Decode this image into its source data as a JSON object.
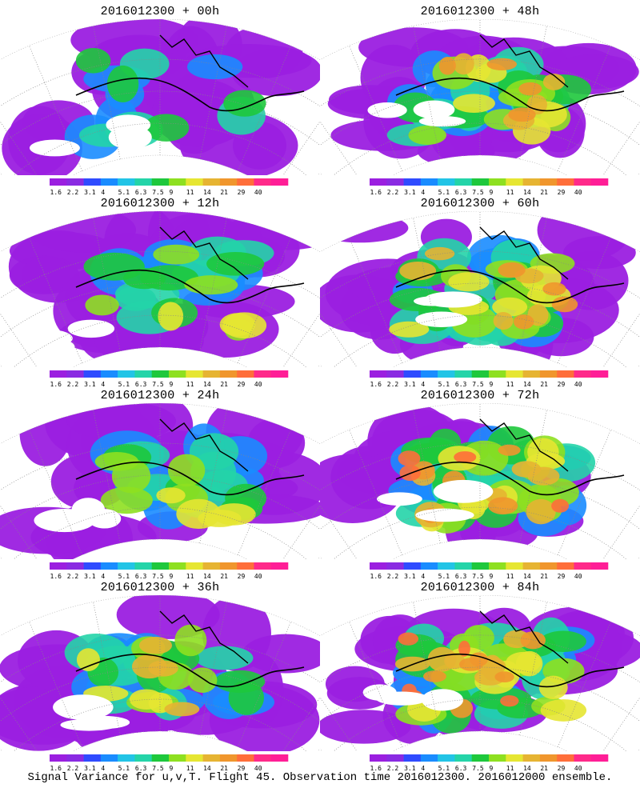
{
  "caption": "Signal Variance for u,v,T. Flight 45. Observation time 2016012300. 2016012000 ensemble.",
  "panels": [
    {
      "title": "2016012300 + 00h",
      "intensity": 0.15
    },
    {
      "title": "2016012300 + 48h",
      "intensity": 0.55
    },
    {
      "title": "2016012300 + 12h",
      "intensity": 0.3
    },
    {
      "title": "2016012300 + 60h",
      "intensity": 0.65
    },
    {
      "title": "2016012300 + 24h",
      "intensity": 0.38
    },
    {
      "title": "2016012300 + 72h",
      "intensity": 0.75
    },
    {
      "title": "2016012300 + 36h",
      "intensity": 0.45
    },
    {
      "title": "2016012300 + 84h",
      "intensity": 0.85
    }
  ],
  "colorbar": {
    "labels": [
      "1.6",
      "2.2",
      "3.1",
      "4",
      "5.1",
      "6.3",
      "7.5",
      "9",
      "11",
      "14",
      "21",
      "29",
      "40"
    ],
    "colors": [
      "#9b1fe0",
      "#8a2be2",
      "#2f4bff",
      "#1a8cff",
      "#22c4e6",
      "#24d4a8",
      "#1ec83c",
      "#8ee020",
      "#e6e632",
      "#e6b432",
      "#f0962d",
      "#ff6e3a",
      "#ff2a8a",
      "#ff1e96"
    ]
  }
}
